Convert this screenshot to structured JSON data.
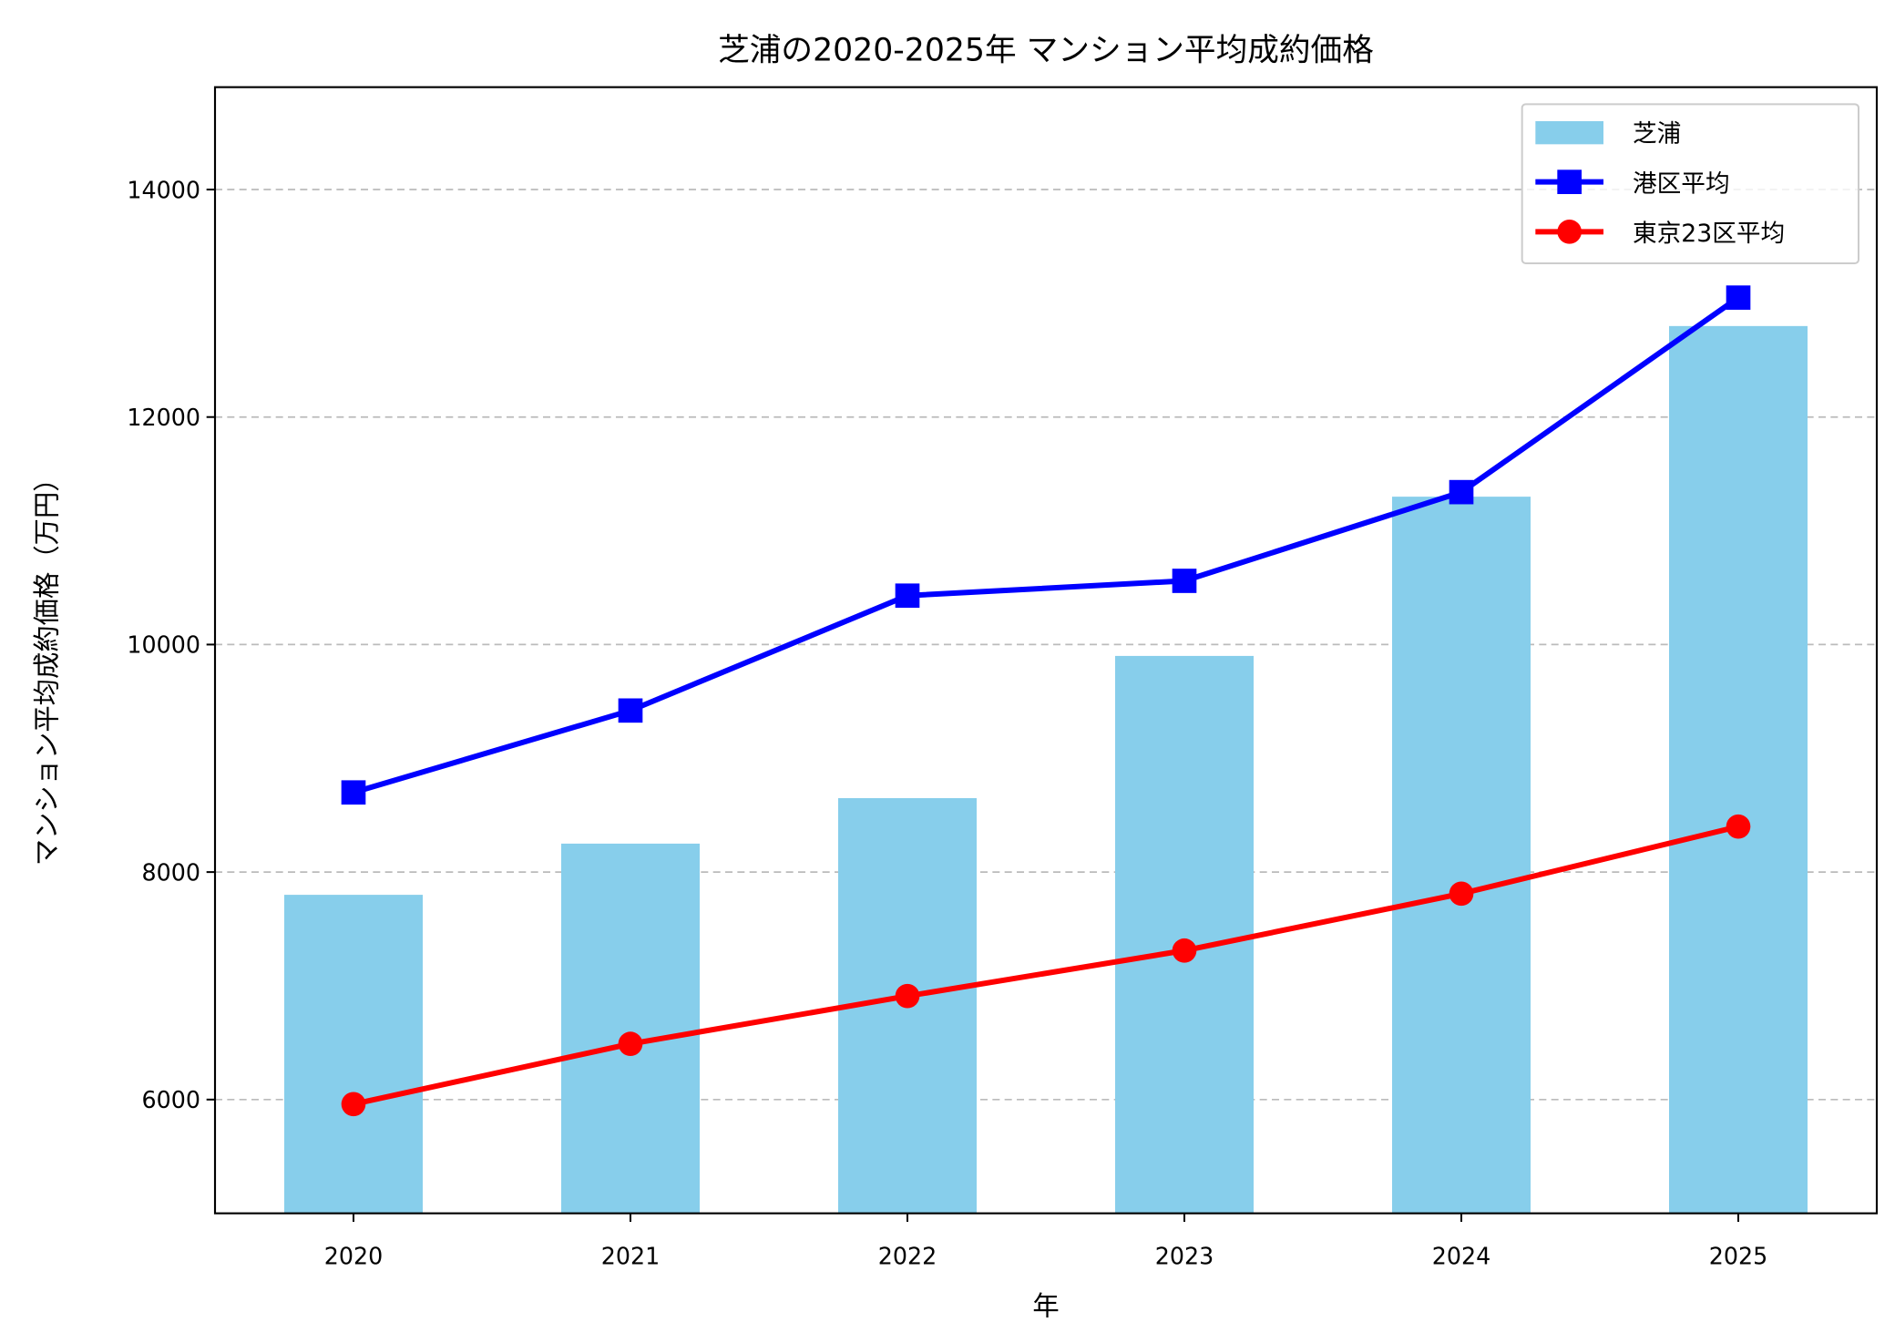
{
  "chart_data": {
    "type": "bar+line",
    "title": "芝浦の2020-2025年 マンション平均成約価格",
    "xlabel": "年",
    "ylabel": "マンション平均成約価格（万円）",
    "categories": [
      "2020",
      "2021",
      "2022",
      "2023",
      "2024",
      "2025"
    ],
    "ylim": [
      5000,
      14900
    ],
    "yticks": [
      "6000",
      "8000",
      "10000",
      "12000",
      "14000"
    ],
    "grid": "horizontal dashed",
    "legend_position": "top-right",
    "series": [
      {
        "name": "芝浦",
        "kind": "bar",
        "color": "#87CEEB",
        "values": [
          7800,
          8250,
          8650,
          9900,
          11300,
          12800
        ]
      },
      {
        "name": "港区平均",
        "kind": "line",
        "marker": "square",
        "color": "#0000FF",
        "values": [
          8700,
          9420,
          10430,
          10560,
          11340,
          13050
        ]
      },
      {
        "name": "東京23区平均",
        "kind": "line",
        "marker": "circle",
        "color": "#FF0000",
        "values": [
          5960,
          6490,
          6910,
          7310,
          7810,
          8400
        ]
      }
    ]
  }
}
